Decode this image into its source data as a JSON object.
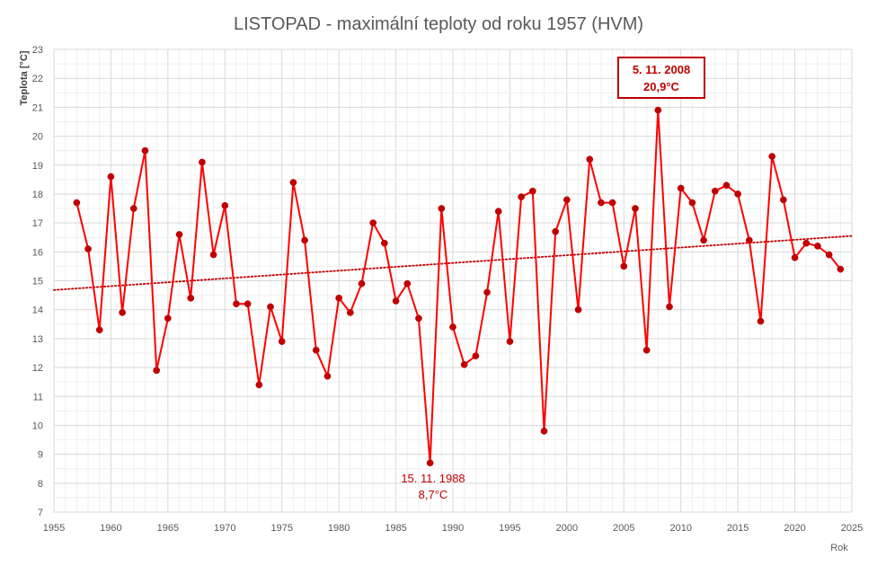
{
  "chart_data": {
    "type": "line",
    "title": "LISTOPAD - maximální teploty od roku 1957 (HVM)",
    "xlabel": "Rok",
    "ylabel": "Teplota [°C]",
    "xlim": [
      1955,
      2025
    ],
    "ylim": [
      7,
      23
    ],
    "x_ticks": [
      1955,
      1960,
      1965,
      1970,
      1975,
      1980,
      1985,
      1990,
      1995,
      2000,
      2005,
      2010,
      2015,
      2020,
      2025
    ],
    "y_ticks": [
      7,
      8,
      9,
      10,
      11,
      12,
      13,
      14,
      15,
      16,
      17,
      18,
      19,
      20,
      21,
      22,
      23
    ],
    "grid": true,
    "series": [
      {
        "color": "#ff0000",
        "marker_color": "#c00000",
        "x": [
          1957,
          1958,
          1959,
          1960,
          1961,
          1962,
          1963,
          1964,
          1965,
          1966,
          1967,
          1968,
          1969,
          1970,
          1971,
          1972,
          1973,
          1974,
          1975,
          1976,
          1977,
          1978,
          1979,
          1980,
          1981,
          1982,
          1983,
          1984,
          1985,
          1986,
          1987,
          1988,
          1989,
          1990,
          1991,
          1992,
          1993,
          1994,
          1995,
          1996,
          1997,
          1998,
          1999,
          2000,
          2001,
          2002,
          2003,
          2004,
          2005,
          2006,
          2007,
          2008,
          2009,
          2010,
          2011,
          2012,
          2013,
          2014,
          2015,
          2016,
          2017,
          2018,
          2019,
          2020,
          2021,
          2022,
          2023,
          2024
        ],
        "y": [
          17.7,
          16.1,
          13.3,
          18.6,
          13.9,
          17.5,
          19.5,
          11.9,
          13.7,
          16.6,
          14.4,
          19.1,
          15.9,
          17.6,
          14.2,
          14.2,
          11.4,
          14.1,
          12.9,
          18.4,
          16.4,
          12.6,
          11.7,
          14.4,
          13.9,
          14.9,
          17.0,
          16.3,
          14.3,
          14.9,
          13.7,
          8.7,
          17.5,
          13.4,
          12.1,
          12.4,
          14.6,
          17.4,
          12.9,
          17.9,
          18.1,
          9.8,
          16.7,
          17.8,
          14.0,
          19.2,
          17.7,
          17.7,
          15.5,
          17.5,
          12.6,
          20.9,
          14.1,
          18.2,
          17.7,
          16.4,
          18.1,
          18.3,
          18.0,
          16.4,
          13.6,
          19.3,
          17.8,
          15.8,
          16.3,
          16.2,
          15.9,
          15.4
        ]
      }
    ],
    "trendline": {
      "color": "#c00000",
      "style": "dotted",
      "x": [
        1955,
        2025
      ],
      "y": [
        14.68,
        16.55
      ]
    },
    "annotations": [
      {
        "line1": "5. 11. 2008",
        "line2": "20,9°C",
        "boxed": true,
        "bold": true
      },
      {
        "line1": "15. 11. 1988",
        "line2": "8,7°C",
        "boxed": false,
        "bold": false
      }
    ]
  }
}
